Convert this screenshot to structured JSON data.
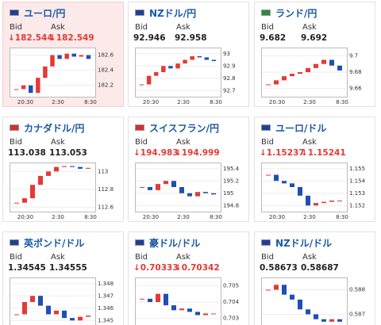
{
  "panels": [
    {
      "title": "ユーロ/円",
      "bid_label": "Bid",
      "ask_label": "Ask",
      "bid": "↓182.544",
      "ask": "↓182.549",
      "price_color": "#e53935",
      "flag": "#1f3f99",
      "active": true,
      "chart": {
        "ylim": [
          182.05,
          182.7
        ],
        "yticks": [
          182.6,
          182.4,
          182.2
        ],
        "xticks": [
          "20:30",
          "2:30",
          "8:30"
        ],
        "values": [
          182.15,
          182.2,
          182.1,
          182.3,
          182.45,
          182.6,
          182.55,
          182.62,
          182.58,
          182.6,
          182.55
        ]
      }
    },
    {
      "title": "NZドル/円",
      "bid_label": "Bid",
      "ask_label": "Ask",
      "bid": "92.946",
      "ask": "92.958",
      "price_color": "#222",
      "flag": "#1f3f99",
      "active": false,
      "chart": {
        "ylim": [
          92.65,
          93.05
        ],
        "yticks": [
          93,
          92.9,
          92.8,
          92.7
        ],
        "xticks": [
          "20:30",
          "2:30",
          "8:30"
        ],
        "values": [
          92.75,
          92.82,
          92.85,
          92.9,
          92.88,
          92.92,
          92.95,
          92.98,
          92.97,
          92.95,
          92.94
        ]
      }
    },
    {
      "title": "ランド/円",
      "bid_label": "Bid",
      "ask_label": "Ask",
      "bid": "9.682",
      "ask": "9.692",
      "price_color": "#222",
      "flag": "#2e8b3a",
      "active": false,
      "chart": {
        "ylim": [
          9.65,
          9.71
        ],
        "yticks": [
          9.7,
          9.68,
          9.66
        ],
        "xticks": [
          "20:30",
          "2:30",
          "8:30"
        ],
        "values": [
          9.665,
          9.67,
          9.675,
          9.678,
          9.68,
          9.685,
          9.69,
          9.695,
          9.688,
          9.682
        ]
      }
    },
    {
      "title": "カナダドル/円",
      "bid_label": "Bid",
      "ask_label": "Ask",
      "bid": "113.038",
      "ask": "113.053",
      "price_color": "#222",
      "flag": "#d32f2f",
      "active": false,
      "chart": {
        "ylim": [
          112.55,
          113.1
        ],
        "yticks": [
          113,
          112.8,
          112.6
        ],
        "xticks": [
          "20:30",
          "2:30",
          "8:30"
        ],
        "values": [
          112.65,
          112.7,
          112.85,
          112.95,
          113.0,
          113.05,
          113.06,
          113.05,
          113.03,
          113.04
        ]
      }
    },
    {
      "title": "スイスフラン/円",
      "bid_label": "Bid",
      "ask_label": "Ask",
      "bid": "↓194.983",
      "ask": "↓194.999",
      "price_color": "#e53935",
      "flag": "#d32f2f",
      "active": false,
      "chart": {
        "ylim": [
          194.7,
          195.5
        ],
        "yticks": [
          195.4,
          195.2,
          195,
          194.8
        ],
        "xticks": [
          "20:30",
          "2:30",
          "8:30"
        ],
        "values": [
          195.1,
          195.05,
          195.15,
          195.2,
          195.1,
          195.0,
          194.95,
          195.02,
          195.0,
          194.98
        ]
      }
    },
    {
      "title": "ユーロ/ドル",
      "bid_label": "Bid",
      "ask_label": "Ask",
      "bid": "↓1.15237",
      "ask": "↓1.15241",
      "price_color": "#e53935",
      "flag": "#1f3f99",
      "active": false,
      "chart": {
        "ylim": [
          1.1515,
          1.1555
        ],
        "yticks": [
          1.155,
          1.154,
          1.153,
          1.152
        ],
        "xticks": [
          "20:30",
          "2:30",
          "8:30"
        ],
        "values": [
          1.1545,
          1.154,
          1.1538,
          1.1535,
          1.1528,
          1.152,
          1.1522,
          1.1523,
          1.1524,
          1.1524
        ]
      }
    },
    {
      "title": "英ポンド/ドル",
      "bid_label": "Bid",
      "ask_label": "Ask",
      "bid": "1.34545",
      "ask": "1.34555",
      "price_color": "#222",
      "flag": "#1f3f99",
      "active": false,
      "chart": {
        "ylim": [
          1.3445,
          1.3485
        ],
        "yticks": [
          1.348,
          1.347,
          1.346,
          1.345
        ],
        "xticks": [
          "20:30",
          "2:30",
          "8:30"
        ],
        "values": [
          1.3455,
          1.3465,
          1.347,
          1.3462,
          1.3455,
          1.3458,
          1.3452,
          1.345,
          1.3453,
          1.3454
        ]
      }
    },
    {
      "title": "豪ドル/ドル",
      "bid_label": "Bid",
      "ask_label": "Ask",
      "bid": "↓0.70333",
      "ask": "↓0.70342",
      "price_color": "#e53935",
      "flag": "#1f3f99",
      "active": false,
      "chart": {
        "ylim": [
          0.7025,
          0.7055
        ],
        "yticks": [
          0.705,
          0.704,
          0.703
        ],
        "xticks": [
          "20:30",
          "2:30",
          "8:30"
        ],
        "values": [
          0.7042,
          0.704,
          0.7045,
          0.7038,
          0.7035,
          0.7036,
          0.7034,
          0.7032,
          0.7033,
          0.7033
        ]
      }
    },
    {
      "title": "NZドル/ドル",
      "bid_label": "Bid",
      "ask_label": "Ask",
      "bid": "0.58673",
      "ask": "0.58687",
      "price_color": "#222",
      "flag": "#1f3f99",
      "active": false,
      "chart": {
        "ylim": [
          0.5865,
          0.5885
        ],
        "yticks": [
          0.588,
          0.587
        ],
        "xticks": [
          "20:30",
          "2:30",
          "8:30"
        ],
        "values": [
          0.588,
          0.5882,
          0.5878,
          0.5876,
          0.5872,
          0.587,
          0.5868,
          0.5867,
          0.5868,
          0.5867
        ]
      }
    }
  ]
}
